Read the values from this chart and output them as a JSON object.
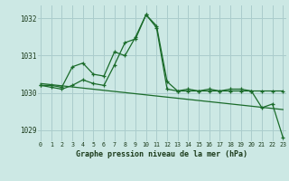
{
  "xlabel": "Graphe pression niveau de la mer (hPa)",
  "background_color": "#cce8e4",
  "grid_color": "#aacccc",
  "line_color": "#1a6b2a",
  "hours": [
    0,
    1,
    2,
    3,
    4,
    5,
    6,
    7,
    8,
    9,
    10,
    11,
    12,
    13,
    14,
    15,
    16,
    17,
    18,
    19,
    20,
    21,
    22,
    23
  ],
  "series1": [
    1030.2,
    1030.2,
    1030.15,
    1030.7,
    1030.8,
    1030.5,
    1030.45,
    1031.1,
    1031.0,
    1031.5,
    1032.1,
    1031.8,
    1030.3,
    1030.05,
    1030.1,
    1030.05,
    1030.1,
    1030.05,
    1030.1,
    1030.1,
    1030.05,
    1029.6,
    1029.7,
    1028.8
  ],
  "series2": [
    1030.2,
    1030.15,
    1030.1,
    1030.2,
    1030.35,
    1030.25,
    1030.2,
    1030.75,
    1031.35,
    1031.45,
    1032.1,
    1031.75,
    1030.1,
    1030.05,
    1030.05,
    1030.05,
    1030.05,
    1030.05,
    1030.05,
    1030.05,
    1030.05,
    1030.05,
    1030.05,
    1030.05
  ],
  "trend_x": [
    0,
    23
  ],
  "trend_y": [
    1030.25,
    1029.55
  ],
  "ylim": [
    1028.7,
    1032.35
  ],
  "yticks": [
    1029,
    1030,
    1031,
    1032
  ],
  "xlim": [
    -0.3,
    23.3
  ]
}
